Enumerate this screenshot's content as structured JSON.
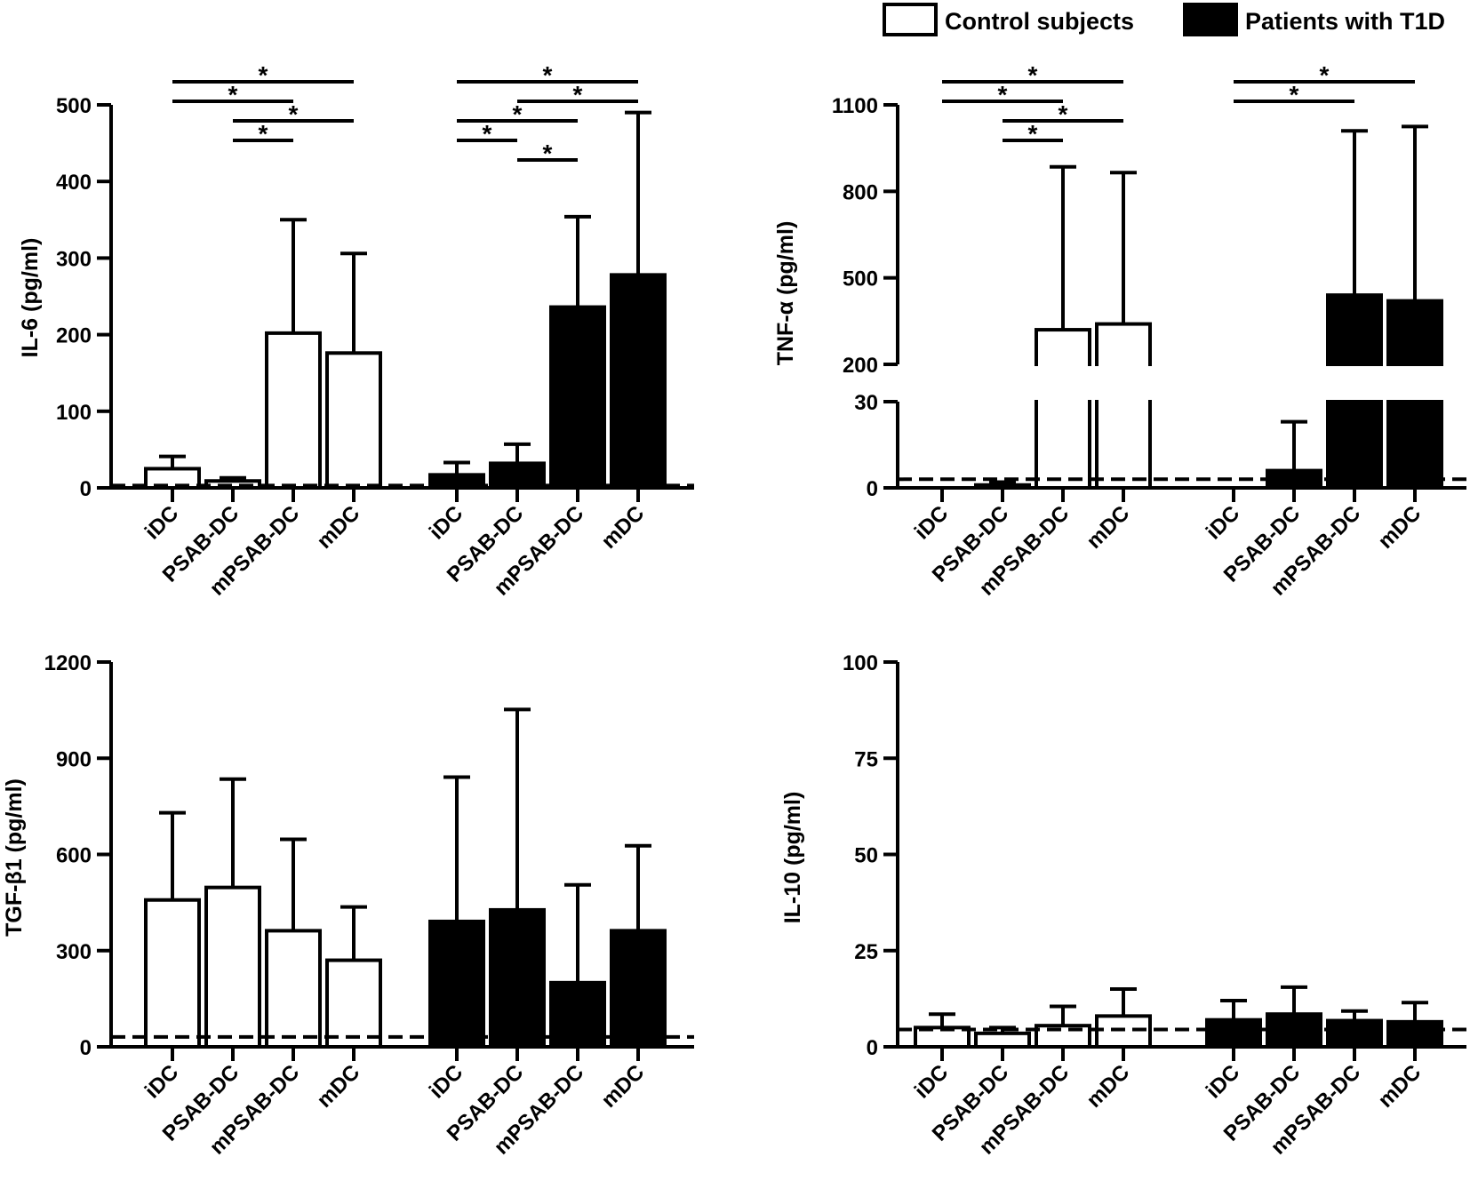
{
  "legend": [
    {
      "label": "Control subjects",
      "fill": "#ffffff"
    },
    {
      "label": "Patients with T1D",
      "fill": "#000000"
    }
  ],
  "chart_data": [
    {
      "id": "il6",
      "type": "bar",
      "ylabel": "IL-6 (pg/ml)",
      "ylim": [
        0,
        500
      ],
      "yticks": [
        0,
        100,
        200,
        300,
        400,
        500
      ],
      "detection_limit": 3,
      "categories": [
        "iDC",
        "PSAB-DC",
        "mPSAB-DC",
        "mDC"
      ],
      "series": [
        {
          "name": "Control subjects",
          "values": [
            25,
            9,
            202,
            176
          ],
          "errors": [
            16,
            4,
            148,
            130
          ]
        },
        {
          "name": "Patients with T1D",
          "values": [
            17,
            32,
            236,
            278
          ],
          "errors": [
            16,
            25,
            118,
            212
          ]
        }
      ],
      "significance": [
        {
          "group": 0,
          "from": 0,
          "to": 3,
          "label": "*"
        },
        {
          "group": 0,
          "from": 0,
          "to": 2,
          "label": "*"
        },
        {
          "group": 0,
          "from": 1,
          "to": 3,
          "label": "*"
        },
        {
          "group": 0,
          "from": 1,
          "to": 2,
          "label": "*"
        },
        {
          "group": 1,
          "from": 0,
          "to": 3,
          "label": "*"
        },
        {
          "group": 1,
          "from": 1,
          "to": 3,
          "label": "*"
        },
        {
          "group": 1,
          "from": 0,
          "to": 2,
          "label": "*"
        },
        {
          "group": 1,
          "from": 0,
          "to": 1,
          "label": "*"
        },
        {
          "group": 1,
          "from": 1,
          "to": 2,
          "label": "*"
        }
      ]
    },
    {
      "id": "tnfa",
      "type": "bar",
      "ylabel": "TNF-α (pg/ml)",
      "ylim": [
        0,
        1100
      ],
      "yticks": [
        0,
        30,
        200,
        500,
        800,
        1100
      ],
      "axis_break": [
        30,
        200
      ],
      "detection_limit": 3,
      "categories": [
        "iDC",
        "PSAB-DC",
        "mPSAB-DC",
        "mDC"
      ],
      "series": [
        {
          "name": "Control subjects",
          "values": [
            0,
            1,
            320,
            340
          ],
          "errors": [
            0,
            1,
            565,
            525
          ]
        },
        {
          "name": "Patients with T1D",
          "values": [
            0,
            6,
            440,
            420
          ],
          "errors": [
            0,
            17,
            570,
            605
          ]
        }
      ],
      "significance": [
        {
          "group": 0,
          "from": 0,
          "to": 3,
          "label": "*"
        },
        {
          "group": 0,
          "from": 0,
          "to": 2,
          "label": "*"
        },
        {
          "group": 0,
          "from": 1,
          "to": 3,
          "label": "*"
        },
        {
          "group": 0,
          "from": 1,
          "to": 2,
          "label": "*"
        },
        {
          "group": 1,
          "from": 0,
          "to": 3,
          "label": "*"
        },
        {
          "group": 1,
          "from": 0,
          "to": 2,
          "label": "*"
        }
      ]
    },
    {
      "id": "tgfb1",
      "type": "bar",
      "ylabel": "TGF-β1 (pg/ml)",
      "ylim": [
        0,
        1200
      ],
      "yticks": [
        0,
        300,
        600,
        900,
        1200
      ],
      "detection_limit": 31,
      "categories": [
        "iDC",
        "PSAB-DC",
        "mPSAB-DC",
        "mDC"
      ],
      "series": [
        {
          "name": "Control subjects",
          "values": [
            458,
            497,
            362,
            270
          ],
          "errors": [
            272,
            338,
            285,
            166
          ]
        },
        {
          "name": "Patients with T1D",
          "values": [
            391,
            427,
            200,
            362
          ],
          "errors": [
            450,
            625,
            305,
            265
          ]
        }
      ],
      "significance": []
    },
    {
      "id": "il10",
      "type": "bar",
      "ylabel": "IL-10 (pg/ml)",
      "ylim": [
        0,
        100
      ],
      "yticks": [
        0,
        25,
        50,
        75,
        100
      ],
      "detection_limit": 4.5,
      "categories": [
        "iDC",
        "PSAB-DC",
        "mPSAB-DC",
        "mDC"
      ],
      "series": [
        {
          "name": "Control subjects",
          "values": [
            5,
            3.5,
            5.5,
            8
          ],
          "errors": [
            3.5,
            1.5,
            5,
            7
          ]
        },
        {
          "name": "Patients with T1D",
          "values": [
            7,
            8.5,
            6.8,
            6.5
          ],
          "errors": [
            5,
            7,
            2.5,
            5
          ]
        }
      ],
      "significance": []
    }
  ]
}
